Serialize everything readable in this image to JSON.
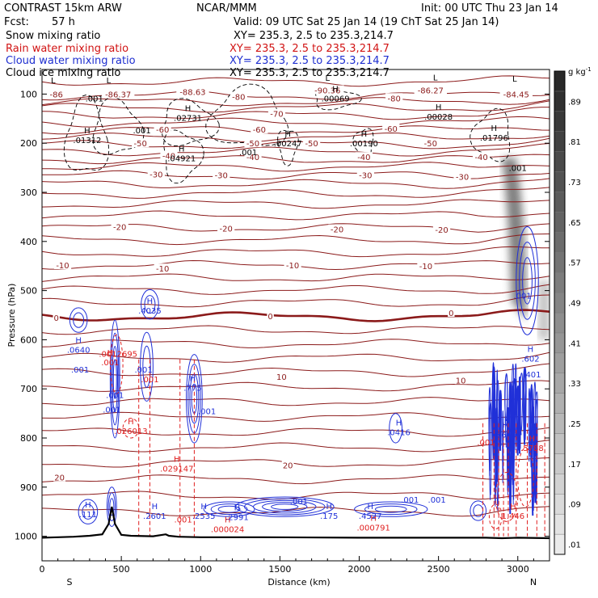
{
  "header": {
    "line1_left": "CONTRAST 15km ARW",
    "line1_mid": "NCAR/MMM",
    "line1_right": "Init: 00 UTC Thu 23 Jan 14",
    "fcst_label": "Fcst:",
    "fcst_value": "57 h",
    "valid": "Valid: 09 UTC Sat 25 Jan 14 (19 ChT Sat 25 Jan 14)"
  },
  "fields": [
    {
      "name": "Snow mixing ratio",
      "xy": "XY= 235.3, 2.5 to 235.3,214.7",
      "color": "#000000"
    },
    {
      "name": "Rain water mixing ratio",
      "xy": "XY= 235.3, 2.5 to 235.3,214.7",
      "color": "#d11414"
    },
    {
      "name": "Cloud water mixing ratio",
      "xy": "XY= 235.3, 2.5 to 235.3,214.7",
      "color": "#1f2fd0"
    },
    {
      "name": "Cloud ice mixing ratio",
      "xy": "XY= 235.3, 2.5 to 235.3,214.7",
      "color": "#000000"
    }
  ],
  "colors": {
    "temperature": "#8b1a1a",
    "rain": "#e02020",
    "cloud": "#2030d8",
    "terrain": "#000000",
    "snow_shade": "#555555"
  },
  "colorbar": {
    "unit": "g kg",
    "unit_sup": "-1",
    "labels": [
      ".01",
      ".09",
      ".17",
      ".25",
      ".33",
      ".41",
      ".49",
      ".57",
      ".65",
      ".73",
      ".81",
      ".89"
    ],
    "levels": [
      0.01,
      0.05,
      0.09,
      0.13,
      0.17,
      0.21,
      0.25,
      0.29,
      0.33,
      0.37,
      0.41,
      0.45,
      0.49,
      0.53,
      0.57,
      0.61,
      0.65,
      0.69,
      0.73,
      0.77,
      0.81,
      0.85,
      0.89,
      0.93
    ]
  },
  "chart_data": {
    "type": "cross-section contour",
    "title": "CONTRAST 15km ARW",
    "xlabel": "Distance (km)",
    "ylabel": "Pressure (hPa)",
    "xlim": [
      0,
      3200
    ],
    "ylim": [
      1050,
      50
    ],
    "x_ticks": [
      "0",
      "500",
      "1000",
      "1500",
      "2000",
      "2500",
      "3000"
    ],
    "x_tick_values": [
      0,
      500,
      1000,
      1500,
      2000,
      2500,
      3000
    ],
    "y_ticks": [
      "100",
      "200",
      "300",
      "400",
      "500",
      "600",
      "700",
      "800",
      "900",
      "1000"
    ],
    "y_tick_values": [
      100,
      200,
      300,
      400,
      500,
      600,
      700,
      800,
      900,
      1000
    ],
    "end_labels": {
      "left": "S",
      "right": "N"
    },
    "temperature_isotherms": [
      {
        "label": "-86",
        "x": 90,
        "p": 100
      },
      {
        "label": "-86.37",
        "x": 480,
        "p": 100
      },
      {
        "label": "-88.63",
        "x": 950,
        "p": 95
      },
      {
        "label": "-90.36",
        "x": 1800,
        "p": 92
      },
      {
        "label": "-86.27",
        "x": 2450,
        "p": 92
      },
      {
        "label": "-84.45",
        "x": 2990,
        "p": 100
      },
      {
        "label": "-80",
        "x": 1240,
        "p": 105
      },
      {
        "label": "-80",
        "x": 2220,
        "p": 108
      },
      {
        "label": "-70",
        "x": 1480,
        "p": 140
      },
      {
        "label": "-60",
        "x": 760,
        "p": 172
      },
      {
        "label": "-60",
        "x": 1370,
        "p": 172
      },
      {
        "label": "-60",
        "x": 2200,
        "p": 170
      },
      {
        "label": "-50",
        "x": 620,
        "p": 200
      },
      {
        "label": "-50",
        "x": 1330,
        "p": 200
      },
      {
        "label": "-50",
        "x": 1700,
        "p": 200
      },
      {
        "label": "-50",
        "x": 2450,
        "p": 200
      },
      {
        "label": "-40",
        "x": 800,
        "p": 225
      },
      {
        "label": "-40",
        "x": 1330,
        "p": 228
      },
      {
        "label": "-40",
        "x": 2030,
        "p": 228
      },
      {
        "label": "-40",
        "x": 2770,
        "p": 228
      },
      {
        "label": "-30",
        "x": 720,
        "p": 263
      },
      {
        "label": "-30",
        "x": 1130,
        "p": 265
      },
      {
        "label": "-30",
        "x": 2040,
        "p": 265
      },
      {
        "label": "-30",
        "x": 2650,
        "p": 268
      },
      {
        "label": "-20",
        "x": 490,
        "p": 370
      },
      {
        "label": "-20",
        "x": 1160,
        "p": 373
      },
      {
        "label": "-20",
        "x": 1860,
        "p": 375
      },
      {
        "label": "-20",
        "x": 2520,
        "p": 376
      },
      {
        "label": "-10",
        "x": 130,
        "p": 448
      },
      {
        "label": "-10",
        "x": 760,
        "p": 455
      },
      {
        "label": "-10",
        "x": 1580,
        "p": 448
      },
      {
        "label": "-10",
        "x": 2420,
        "p": 450
      },
      {
        "label": "0",
        "x": 90,
        "p": 555
      },
      {
        "label": "0",
        "x": 1440,
        "p": 552
      },
      {
        "label": "0",
        "x": 2580,
        "p": 545
      },
      {
        "label": "10",
        "x": 1510,
        "p": 675
      },
      {
        "label": "10",
        "x": 2640,
        "p": 682
      },
      {
        "label": "20",
        "x": 1550,
        "p": 855
      },
      {
        "label": "20",
        "x": 110,
        "p": 880
      }
    ],
    "isotherm_levels_hpa": [
      75,
      103,
      116,
      128,
      143,
      158,
      173,
      188,
      203,
      217,
      233,
      248,
      265,
      283,
      303,
      324,
      347,
      372,
      397,
      423,
      448,
      474,
      499,
      525,
      553,
      580,
      608,
      637,
      666,
      696,
      726,
      757,
      788,
      819,
      851,
      884,
      917,
      950
    ],
    "zero_isotherm_hpa": 553,
    "snow_maxima": [
      {
        "label": "H",
        "value": ".01312",
        "x": 285,
        "p": 193
      },
      {
        "label": "H",
        "value": ".02731",
        "x": 920,
        "p": 148
      },
      {
        "label": "H",
        "value": ".04921",
        "x": 880,
        "p": 230
      },
      {
        "label": "H",
        "value": ".00247",
        "x": 1550,
        "p": 200
      },
      {
        "label": "H",
        "value": ".00190",
        "x": 2030,
        "p": 200
      },
      {
        "label": "H",
        "value": ".00069",
        "x": 1850,
        "p": 108
      },
      {
        "label": "H",
        "value": ".00028",
        "x": 2500,
        "p": 145
      },
      {
        "label": "H",
        "value": ".01796",
        "x": 2850,
        "p": 188
      },
      {
        "label": "",
        "value": ".001",
        "x": 330,
        "p": 108
      },
      {
        "label": "",
        "value": ".001",
        "x": 630,
        "p": 173
      },
      {
        "label": "",
        "value": ".001",
        "x": 1300,
        "p": 218
      },
      {
        "label": "",
        "value": ".001",
        "x": 3000,
        "p": 250
      },
      {
        "label": "L",
        "value": "",
        "x": 70,
        "p": 78
      },
      {
        "label": "L",
        "value": "",
        "x": 420,
        "p": 78
      },
      {
        "label": "L",
        "value": "",
        "x": 1800,
        "p": 73
      },
      {
        "label": "L",
        "value": "",
        "x": 2480,
        "p": 72
      },
      {
        "label": "L",
        "value": "",
        "x": 2980,
        "p": 75
      }
    ],
    "rain_maxima": [
      {
        "label": "H",
        "value": ".001",
        "x": 430,
        "p": 645
      },
      {
        "label": "",
        "value": ".0012695",
        "x": 480,
        "p": 628
      },
      {
        "label": "",
        "value": ".001",
        "x": 680,
        "p": 680
      },
      {
        "label": "H",
        "value": ".026013",
        "x": 560,
        "p": 785
      },
      {
        "label": "H",
        "value": ".029147",
        "x": 850,
        "p": 862
      },
      {
        "label": "",
        "value": ".001",
        "x": 890,
        "p": 965
      },
      {
        "label": "H",
        "value": ".000024",
        "x": 1170,
        "p": 985
      },
      {
        "label": "H",
        "value": ".000791",
        "x": 2090,
        "p": 982
      },
      {
        "label": "",
        "value": ".001",
        "x": 2800,
        "p": 808
      },
      {
        "label": "H",
        "value": ".5788",
        "x": 3090,
        "p": 820
      },
      {
        "label": "H",
        "value": "1.446",
        "x": 2970,
        "p": 958
      }
    ],
    "cloud_maxima": [
      {
        "label": "H",
        "value": ".4035",
        "x": 680,
        "p": 540
      },
      {
        "label": "H",
        "value": ".0640",
        "x": 230,
        "p": 620
      },
      {
        "label": "",
        "value": ".001",
        "x": 240,
        "p": 660
      },
      {
        "label": "",
        "value": ".001",
        "x": 460,
        "p": 712
      },
      {
        "label": "",
        "value": ".001",
        "x": 440,
        "p": 742
      },
      {
        "label": "",
        "value": ".001",
        "x": 640,
        "p": 660
      },
      {
        "label": "H",
        "value": ".775",
        "x": 950,
        "p": 697
      },
      {
        "label": "",
        "value": ".001",
        "x": 1040,
        "p": 745
      },
      {
        "label": "H",
        "value": ".0416",
        "x": 2250,
        "p": 788
      },
      {
        "label": "H",
        "value": ".8649",
        "x": 2920,
        "p": 793
      },
      {
        "label": "H",
        "value": ".602",
        "x": 3080,
        "p": 638
      },
      {
        "label": "",
        "value": ".401",
        "x": 3090,
        "p": 670
      },
      {
        "label": "",
        "value": ".001",
        "x": 3030,
        "p": 510
      },
      {
        "label": "H",
        "value": ".111",
        "x": 290,
        "p": 955
      },
      {
        "label": "H",
        "value": ".2601",
        "x": 710,
        "p": 958
      },
      {
        "label": "H",
        "value": ".2535",
        "x": 1020,
        "p": 958
      },
      {
        "label": "H",
        "value": ".2991",
        "x": 1230,
        "p": 960
      },
      {
        "label": "",
        "value": ".001",
        "x": 1620,
        "p": 928
      },
      {
        "label": "H",
        "value": ".175",
        "x": 1810,
        "p": 958
      },
      {
        "label": "H",
        "value": ".4527",
        "x": 2070,
        "p": 958
      },
      {
        "label": "",
        "value": ".001",
        "x": 2320,
        "p": 925
      },
      {
        "label": "",
        "value": ".001",
        "x": 2490,
        "p": 925
      }
    ],
    "rain_shafts_km": [
      610,
      680,
      870,
      960,
      2780,
      2850,
      2880,
      2910,
      2940,
      2990,
      3060,
      3120,
      3170
    ],
    "terrain": {
      "x": [
        0,
        100,
        200,
        300,
        380,
        420,
        440,
        460,
        500,
        560,
        700,
        780,
        800,
        860,
        1000,
        1400,
        2000,
        2500,
        2800,
        2900,
        3000,
        3200
      ],
      "p": [
        1003,
        1002,
        1001,
        999,
        996,
        975,
        940,
        975,
        997,
        999,
        1000,
        996,
        999,
        1001,
        1002,
        1002,
        1003,
        1003,
        1003,
        1004,
        1003,
        1004
      ]
    }
  }
}
